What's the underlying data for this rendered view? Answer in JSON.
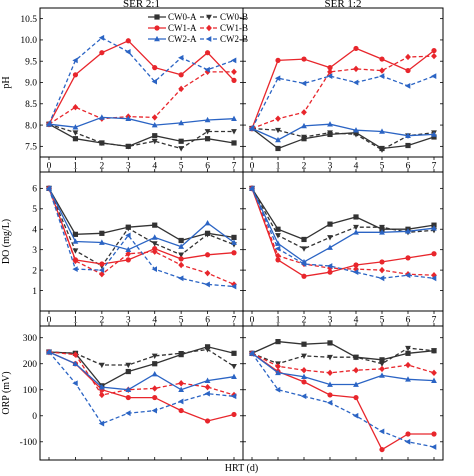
{
  "chart_data": {
    "type": "line",
    "layout": "3 rows x 2 columns of line panels with a shared HRT axis",
    "columns": [
      "SER 2:1",
      "SER 1:2"
    ],
    "xlabel": "HRT (d)",
    "x": [
      0,
      1,
      2,
      3,
      4,
      5,
      6,
      7
    ],
    "x_ticks": [
      "0",
      "1",
      "2",
      "3",
      "4",
      "5",
      "6",
      "7"
    ],
    "legend_position": "top (inside top-left panel)",
    "series_styles": [
      {
        "name": "CW0-A",
        "color": "#333333",
        "dash": "solid",
        "marker": "square"
      },
      {
        "name": "CW0-B",
        "color": "#333333",
        "dash": "dashed",
        "marker": "triangle-down"
      },
      {
        "name": "CW1-A",
        "color": "#e8262c",
        "dash": "solid",
        "marker": "circle"
      },
      {
        "name": "CW1-B",
        "color": "#e8262c",
        "dash": "dashed",
        "marker": "diamond"
      },
      {
        "name": "CW2-A",
        "color": "#2b64c4",
        "dash": "solid",
        "marker": "triangle-up"
      },
      {
        "name": "CW2-B",
        "color": "#2b64c4",
        "dash": "dashed",
        "marker": "triangle-left"
      }
    ],
    "rows": [
      {
        "ylabel": "pH",
        "ylim": [
          7.25,
          10.75
        ],
        "yticks": [
          7.5,
          8.0,
          8.5,
          9.0,
          9.5,
          10.0,
          10.5
        ],
        "ytick_labels": [
          "7.5",
          "8.0",
          "8.5",
          "9.0",
          "9.5",
          "10.0",
          "10.5"
        ],
        "panels": [
          {
            "series": [
              {
                "name": "CW0-A",
                "values": [
                  8.02,
                  7.68,
                  7.58,
                  7.5,
                  7.75,
                  7.62,
                  7.68,
                  7.58
                ]
              },
              {
                "name": "CW0-B",
                "values": [
                  8.02,
                  7.82,
                  7.58,
                  7.5,
                  7.62,
                  7.45,
                  7.85,
                  7.85
                ]
              },
              {
                "name": "CW1-A",
                "values": [
                  8.02,
                  9.18,
                  9.7,
                  9.98,
                  9.35,
                  9.18,
                  9.7,
                  9.05
                ]
              },
              {
                "name": "CW1-B",
                "values": [
                  8.02,
                  8.42,
                  8.15,
                  8.2,
                  8.18,
                  8.85,
                  9.25,
                  9.25
                ]
              },
              {
                "name": "CW2-A",
                "values": [
                  8.02,
                  7.95,
                  8.18,
                  8.15,
                  8.0,
                  8.05,
                  8.12,
                  8.15
                ]
              },
              {
                "name": "CW2-B",
                "values": [
                  8.02,
                  9.52,
                  10.05,
                  9.72,
                  9.02,
                  9.58,
                  9.3,
                  9.52
                ]
              }
            ]
          },
          {
            "series": [
              {
                "name": "CW0-A",
                "values": [
                  7.92,
                  7.45,
                  7.68,
                  7.78,
                  7.82,
                  7.45,
                  7.52,
                  7.72
                ]
              },
              {
                "name": "CW0-B",
                "values": [
                  7.92,
                  7.88,
                  7.72,
                  7.82,
                  7.78,
                  7.42,
                  7.75,
                  7.82
                ]
              },
              {
                "name": "CW1-A",
                "values": [
                  7.92,
                  9.52,
                  9.55,
                  9.35,
                  9.8,
                  9.55,
                  9.28,
                  9.75
                ]
              },
              {
                "name": "CW1-B",
                "values": [
                  7.92,
                  8.15,
                  8.3,
                  9.25,
                  9.32,
                  9.28,
                  9.6,
                  9.62
                ]
              },
              {
                "name": "CW2-A",
                "values": [
                  7.92,
                  7.65,
                  7.98,
                  8.02,
                  7.88,
                  7.85,
                  7.75,
                  7.78
                ]
              },
              {
                "name": "CW2-B",
                "values": [
                  7.92,
                  9.1,
                  8.98,
                  9.15,
                  9.0,
                  9.15,
                  8.92,
                  9.15
                ]
              }
            ]
          }
        ]
      },
      {
        "ylabel": "DO (mg/L)",
        "ylim": [
          0,
          6.8
        ],
        "yticks": [
          1,
          2,
          3,
          4,
          5,
          6
        ],
        "ytick_labels": [
          "1",
          "2",
          "3",
          "4",
          "5",
          "6"
        ],
        "panels": [
          {
            "series": [
              {
                "name": "CW0-A",
                "values": [
                  6.0,
                  3.75,
                  3.8,
                  4.1,
                  4.2,
                  3.45,
                  3.8,
                  3.6
                ]
              },
              {
                "name": "CW0-B",
                "values": [
                  6.0,
                  2.95,
                  2.2,
                  4.05,
                  3.3,
                  2.75,
                  3.75,
                  3.25
                ]
              },
              {
                "name": "CW1-A",
                "values": [
                  6.0,
                  2.5,
                  2.3,
                  2.5,
                  3.05,
                  2.55,
                  2.75,
                  2.85
                ]
              },
              {
                "name": "CW1-B",
                "values": [
                  6.0,
                  2.45,
                  1.8,
                  2.8,
                  2.9,
                  2.25,
                  1.85,
                  1.3
                ]
              },
              {
                "name": "CW2-A",
                "values": [
                  6.0,
                  3.4,
                  3.35,
                  3.0,
                  3.6,
                  3.15,
                  4.3,
                  3.35
                ]
              },
              {
                "name": "CW2-B",
                "values": [
                  6.0,
                  2.05,
                  2.0,
                  3.7,
                  2.05,
                  1.6,
                  1.3,
                  1.2
                ]
              }
            ]
          },
          {
            "series": [
              {
                "name": "CW0-A",
                "values": [
                  6.0,
                  4.0,
                  3.5,
                  4.25,
                  4.6,
                  4.0,
                  4.0,
                  4.2
                ]
              },
              {
                "name": "CW0-B",
                "values": [
                  6.0,
                  3.7,
                  3.05,
                  3.6,
                  4.1,
                  4.1,
                  3.85,
                  3.95
                ]
              },
              {
                "name": "CW1-A",
                "values": [
                  6.0,
                  2.5,
                  1.7,
                  1.9,
                  2.25,
                  2.4,
                  2.6,
                  2.8
                ]
              },
              {
                "name": "CW1-B",
                "values": [
                  6.0,
                  2.7,
                  2.3,
                  2.1,
                  2.05,
                  2.0,
                  1.8,
                  1.75
                ]
              },
              {
                "name": "CW2-A",
                "values": [
                  6.0,
                  3.3,
                  2.4,
                  3.1,
                  3.85,
                  3.85,
                  3.9,
                  4.05
                ]
              },
              {
                "name": "CW2-B",
                "values": [
                  6.0,
                  3.05,
                  2.3,
                  2.2,
                  1.9,
                  1.6,
                  1.75,
                  1.6
                ]
              }
            ]
          }
        ]
      },
      {
        "ylabel": "ORP (mV)",
        "ylim": [
          -170,
          345
        ],
        "yticks": [
          -100,
          0,
          100,
          200,
          300
        ],
        "ytick_labels": [
          "-100",
          "0",
          "100",
          "200",
          "300"
        ],
        "panels": [
          {
            "series": [
              {
                "name": "CW0-A",
                "values": [
                  245,
                  240,
                  115,
                  170,
                  200,
                  235,
                  265,
                  240
                ]
              },
              {
                "name": "CW0-B",
                "values": [
                  245,
                  240,
                  195,
                  195,
                  230,
                  240,
                  255,
                  190
                ]
              },
              {
                "name": "CW1-A",
                "values": [
                  245,
                  200,
                  100,
                  70,
                  70,
                  20,
                  -20,
                  5
                ]
              },
              {
                "name": "CW1-B",
                "values": [
                  245,
                  235,
                  80,
                  100,
                  105,
                  125,
                  110,
                  80
                ]
              },
              {
                "name": "CW2-A",
                "values": [
                  245,
                  200,
                  110,
                  100,
                  160,
                  100,
                  135,
                  150
                ]
              },
              {
                "name": "CW2-B",
                "values": [
                  245,
                  125,
                  -30,
                  10,
                  20,
                  55,
                  85,
                  75
                ]
              }
            ]
          },
          {
            "series": [
              {
                "name": "CW0-A",
                "values": [
                  240,
                  285,
                  275,
                  280,
                  225,
                  215,
                  240,
                  250
                ]
              },
              {
                "name": "CW0-B",
                "values": [
                  240,
                  200,
                  230,
                  225,
                  225,
                  200,
                  260,
                  250
                ]
              },
              {
                "name": "CW1-A",
                "values": [
                  240,
                  170,
                  130,
                  80,
                  70,
                  -130,
                  -70,
                  -70
                ]
              },
              {
                "name": "CW1-B",
                "values": [
                  240,
                  190,
                  175,
                  165,
                  175,
                  180,
                  195,
                  165
                ]
              },
              {
                "name": "CW2-A",
                "values": [
                  240,
                  165,
                  150,
                  120,
                  120,
                  155,
                  140,
                  135
                ]
              },
              {
                "name": "CW2-B",
                "values": [
                  240,
                  100,
                  75,
                  50,
                  0,
                  -60,
                  -100,
                  -120
                ]
              }
            ]
          }
        ]
      }
    ]
  }
}
